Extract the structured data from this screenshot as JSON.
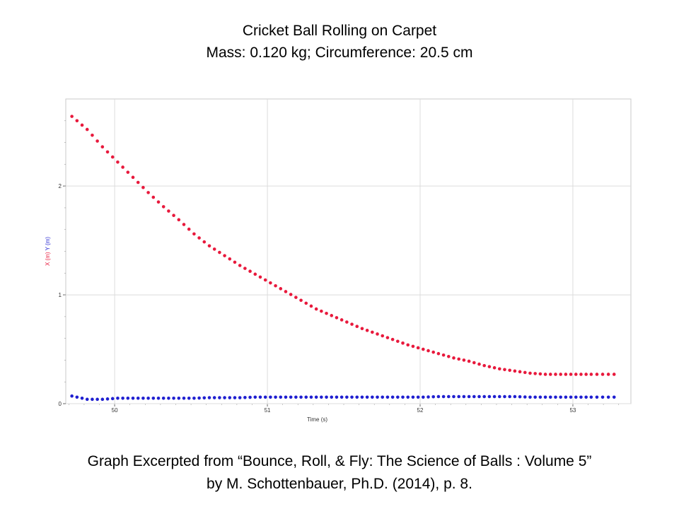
{
  "slide": {
    "title": "Cricket Ball Rolling on Carpet",
    "subtitle": "Mass: 0.120 kg; Circumference:  20.5 cm",
    "footer_line1": "Graph Excerpted from “Bounce, Roll, & Fly: The Science of Balls : Volume 5”",
    "footer_line2": "by M. Schottenbauer, Ph.D. (2014), p. 8."
  },
  "chart_data": {
    "type": "scatter",
    "title": "Cricket Ball Rolling on Carpet",
    "xlabel": "Time (s)",
    "ylabel_parts": [
      {
        "text": "X (m)",
        "color": "#e8193c"
      },
      {
        "text": "Y (m)",
        "color": "#1f1fd0"
      }
    ],
    "xlim": [
      49.68,
      53.38
    ],
    "ylim": [
      0,
      2.8
    ],
    "x_ticks": [
      50,
      51,
      52,
      53
    ],
    "y_ticks": [
      0,
      1,
      2
    ],
    "grid": true,
    "series": [
      {
        "name": "X (m)",
        "color": "#e8193c",
        "x": [
          49.72,
          49.82,
          49.92,
          50.02,
          50.12,
          50.22,
          50.32,
          50.42,
          50.52,
          50.62,
          50.72,
          50.82,
          50.92,
          51.02,
          51.12,
          51.22,
          51.32,
          51.42,
          51.52,
          51.62,
          51.72,
          51.82,
          51.92,
          52.02,
          52.12,
          52.22,
          52.32,
          52.42,
          52.52,
          52.62,
          52.72,
          52.82,
          52.92,
          53.02,
          53.12,
          53.27
        ],
        "values": [
          2.64,
          2.52,
          2.36,
          2.22,
          2.08,
          1.94,
          1.81,
          1.69,
          1.56,
          1.45,
          1.36,
          1.27,
          1.19,
          1.11,
          1.03,
          0.95,
          0.87,
          0.81,
          0.75,
          0.69,
          0.64,
          0.59,
          0.54,
          0.5,
          0.46,
          0.42,
          0.39,
          0.35,
          0.32,
          0.3,
          0.28,
          0.27,
          0.27,
          0.27,
          0.27,
          0.27
        ]
      },
      {
        "name": "Y (m)",
        "color": "#1f1fd0",
        "x": [
          49.72,
          49.82,
          49.92,
          50.02,
          50.12,
          50.22,
          50.32,
          50.42,
          50.52,
          50.62,
          50.72,
          50.82,
          50.92,
          51.02,
          51.12,
          51.22,
          51.32,
          51.42,
          51.52,
          51.62,
          51.72,
          51.82,
          51.92,
          52.02,
          52.12,
          52.22,
          52.32,
          52.42,
          52.52,
          52.62,
          52.72,
          52.82,
          52.92,
          53.02,
          53.12,
          53.27
        ],
        "values": [
          0.07,
          0.04,
          0.04,
          0.05,
          0.05,
          0.05,
          0.05,
          0.05,
          0.05,
          0.055,
          0.055,
          0.055,
          0.06,
          0.06,
          0.06,
          0.06,
          0.06,
          0.06,
          0.06,
          0.06,
          0.06,
          0.06,
          0.06,
          0.06,
          0.065,
          0.065,
          0.065,
          0.065,
          0.065,
          0.065,
          0.06,
          0.06,
          0.06,
          0.06,
          0.06,
          0.06
        ]
      }
    ]
  }
}
